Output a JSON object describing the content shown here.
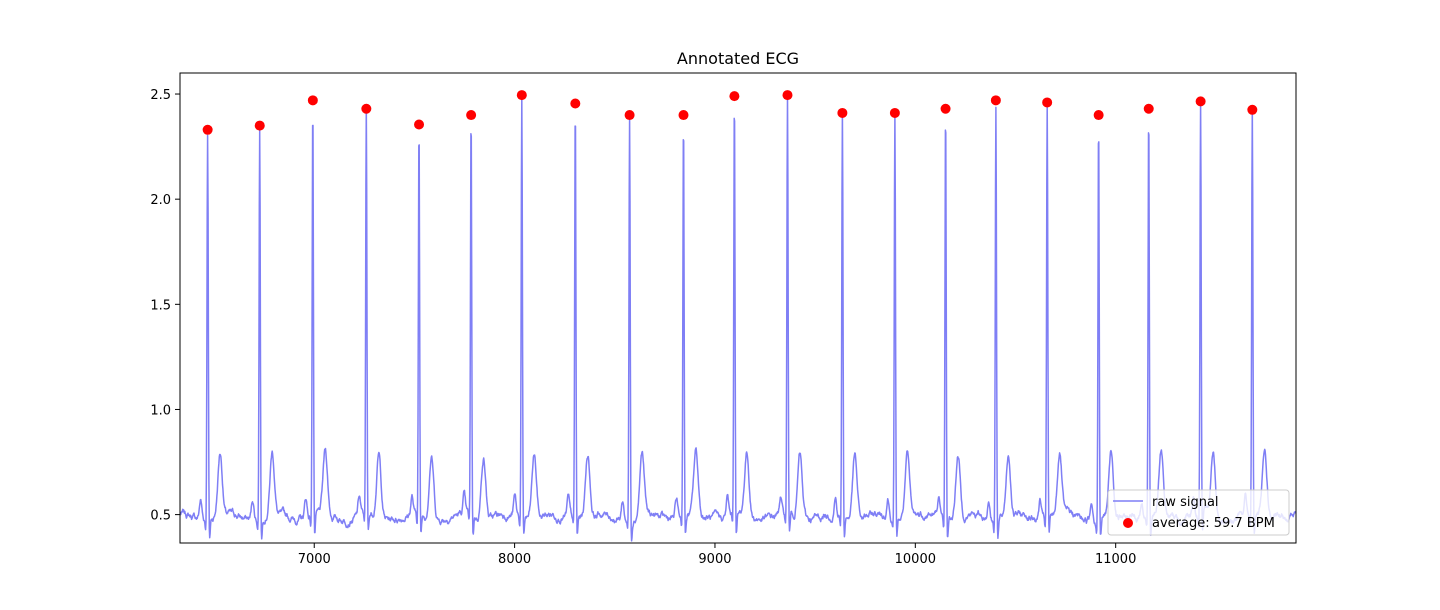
{
  "chart_data": {
    "type": "line",
    "title": "Annotated ECG",
    "xlabel": "",
    "ylabel": "",
    "xlim": [
      6330,
      11900
    ],
    "ylim": [
      0.365,
      2.6
    ],
    "x_ticks": [
      7000,
      8000,
      9000,
      10000,
      11000
    ],
    "y_ticks": [
      0.5,
      1.0,
      1.5,
      2.0,
      2.5
    ],
    "x_tick_labels": [
      "7000",
      "8000",
      "9000",
      "10000",
      "11000"
    ],
    "y_tick_labels": [
      "0.5",
      "1.0",
      "1.5",
      "2.0",
      "2.5"
    ],
    "grid": false,
    "legend_position": "lower-right",
    "legend_entries": [
      {
        "label": "raw signal",
        "kind": "line",
        "color": "#7f7ff5"
      },
      {
        "label": "average: 59.7 BPM",
        "kind": "marker",
        "color": "#ff0000"
      }
    ],
    "series": [
      {
        "name": "raw signal",
        "kind": "line",
        "color": "#7f7ff5",
        "baseline": 0.49,
        "beats": [
          {
            "x": 6468,
            "peak": 2.33
          },
          {
            "x": 6728,
            "peak": 2.35
          },
          {
            "x": 6993,
            "peak": 2.47
          },
          {
            "x": 7260,
            "peak": 2.43
          },
          {
            "x": 7523,
            "peak": 2.355
          },
          {
            "x": 7783,
            "peak": 2.4
          },
          {
            "x": 8036,
            "peak": 2.495
          },
          {
            "x": 8303,
            "peak": 2.455
          },
          {
            "x": 8574,
            "peak": 2.4
          },
          {
            "x": 8843,
            "peak": 2.4
          },
          {
            "x": 9097,
            "peak": 2.49
          },
          {
            "x": 9362,
            "peak": 2.495
          },
          {
            "x": 9636,
            "peak": 2.41
          },
          {
            "x": 9898,
            "peak": 2.41
          },
          {
            "x": 10151,
            "peak": 2.43
          },
          {
            "x": 10402,
            "peak": 2.47
          },
          {
            "x": 10658,
            "peak": 2.46
          },
          {
            "x": 10915,
            "peak": 2.4
          },
          {
            "x": 11165,
            "peak": 2.43
          },
          {
            "x": 11424,
            "peak": 2.465
          },
          {
            "x": 11682,
            "peak": 2.425
          }
        ]
      },
      {
        "name": "average: 59.7 BPM",
        "kind": "scatter",
        "color": "#ff0000",
        "points": [
          {
            "x": 6468,
            "y": 2.33
          },
          {
            "x": 6728,
            "y": 2.35
          },
          {
            "x": 6993,
            "y": 2.47
          },
          {
            "x": 7260,
            "y": 2.43
          },
          {
            "x": 7523,
            "y": 2.355
          },
          {
            "x": 7783,
            "y": 2.4
          },
          {
            "x": 8036,
            "y": 2.495
          },
          {
            "x": 8303,
            "y": 2.455
          },
          {
            "x": 8574,
            "y": 2.4
          },
          {
            "x": 8843,
            "y": 2.4
          },
          {
            "x": 9097,
            "y": 2.49
          },
          {
            "x": 9362,
            "y": 2.495
          },
          {
            "x": 9636,
            "y": 2.41
          },
          {
            "x": 9898,
            "y": 2.41
          },
          {
            "x": 10151,
            "y": 2.43
          },
          {
            "x": 10402,
            "y": 2.47
          },
          {
            "x": 10658,
            "y": 2.46
          },
          {
            "x": 10915,
            "y": 2.4
          },
          {
            "x": 11165,
            "y": 2.43
          },
          {
            "x": 11424,
            "y": 2.465
          },
          {
            "x": 11682,
            "y": 2.425
          }
        ]
      }
    ]
  }
}
